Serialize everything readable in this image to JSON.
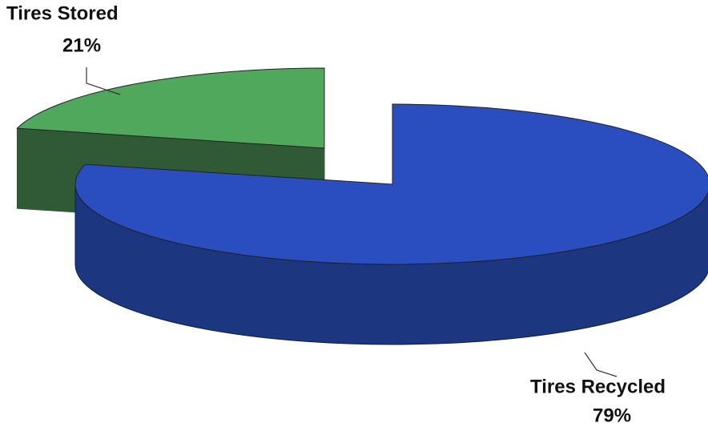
{
  "chart_data": {
    "type": "pie3d",
    "categories": [
      "Tires Stored",
      "Tires Recycled"
    ],
    "values": [
      21,
      79
    ],
    "value_labels": [
      "21%",
      "79%"
    ],
    "colors": [
      "#4fa85c",
      "#2a4dbf"
    ],
    "side_colors": [
      "#2f5a35",
      "#1c367f"
    ]
  }
}
